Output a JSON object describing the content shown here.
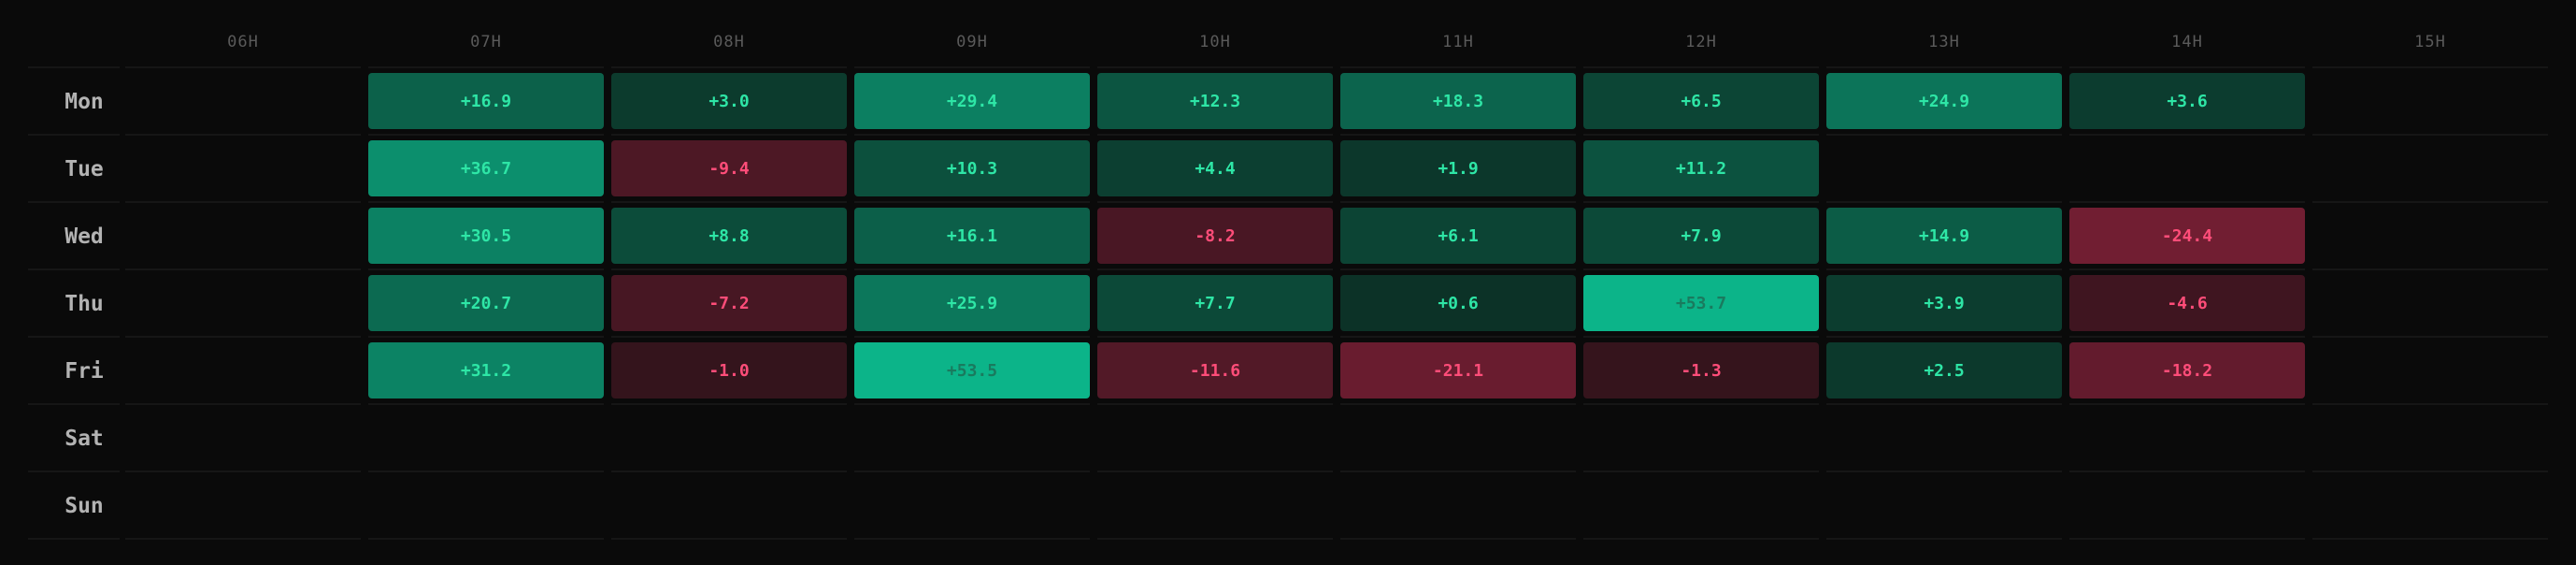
{
  "chart_data": {
    "type": "heatmap",
    "x_categories": [
      "06H",
      "07H",
      "08H",
      "09H",
      "10H",
      "11H",
      "12H",
      "13H",
      "14H",
      "15H"
    ],
    "y_categories": [
      "Mon",
      "Tue",
      "Wed",
      "Thu",
      "Fri",
      "Sat",
      "Sun"
    ],
    "cells": [
      {
        "day": "Mon",
        "hour": "07H",
        "value": 16.9,
        "label": "+16.9"
      },
      {
        "day": "Mon",
        "hour": "08H",
        "value": 3.0,
        "label": "+3.0"
      },
      {
        "day": "Mon",
        "hour": "09H",
        "value": 29.4,
        "label": "+29.4"
      },
      {
        "day": "Mon",
        "hour": "10H",
        "value": 12.3,
        "label": "+12.3"
      },
      {
        "day": "Mon",
        "hour": "11H",
        "value": 18.3,
        "label": "+18.3"
      },
      {
        "day": "Mon",
        "hour": "12H",
        "value": 6.5,
        "label": "+6.5"
      },
      {
        "day": "Mon",
        "hour": "13H",
        "value": 24.9,
        "label": "+24.9"
      },
      {
        "day": "Mon",
        "hour": "14H",
        "value": 3.6,
        "label": "+3.6"
      },
      {
        "day": "Tue",
        "hour": "07H",
        "value": 36.7,
        "label": "+36.7"
      },
      {
        "day": "Tue",
        "hour": "08H",
        "value": -9.4,
        "label": "-9.4"
      },
      {
        "day": "Tue",
        "hour": "09H",
        "value": 10.3,
        "label": "+10.3"
      },
      {
        "day": "Tue",
        "hour": "10H",
        "value": 4.4,
        "label": "+4.4"
      },
      {
        "day": "Tue",
        "hour": "11H",
        "value": 1.9,
        "label": "+1.9"
      },
      {
        "day": "Tue",
        "hour": "12H",
        "value": 11.2,
        "label": "+11.2"
      },
      {
        "day": "Wed",
        "hour": "07H",
        "value": 30.5,
        "label": "+30.5"
      },
      {
        "day": "Wed",
        "hour": "08H",
        "value": 8.8,
        "label": "+8.8"
      },
      {
        "day": "Wed",
        "hour": "09H",
        "value": 16.1,
        "label": "+16.1"
      },
      {
        "day": "Wed",
        "hour": "10H",
        "value": -8.2,
        "label": "-8.2"
      },
      {
        "day": "Wed",
        "hour": "11H",
        "value": 6.1,
        "label": "+6.1"
      },
      {
        "day": "Wed",
        "hour": "12H",
        "value": 7.9,
        "label": "+7.9"
      },
      {
        "day": "Wed",
        "hour": "13H",
        "value": 14.9,
        "label": "+14.9"
      },
      {
        "day": "Wed",
        "hour": "14H",
        "value": -24.4,
        "label": "-24.4"
      },
      {
        "day": "Thu",
        "hour": "07H",
        "value": 20.7,
        "label": "+20.7"
      },
      {
        "day": "Thu",
        "hour": "08H",
        "value": -7.2,
        "label": "-7.2"
      },
      {
        "day": "Thu",
        "hour": "09H",
        "value": 25.9,
        "label": "+25.9"
      },
      {
        "day": "Thu",
        "hour": "10H",
        "value": 7.7,
        "label": "+7.7"
      },
      {
        "day": "Thu",
        "hour": "11H",
        "value": 0.6,
        "label": "+0.6"
      },
      {
        "day": "Thu",
        "hour": "12H",
        "value": 53.7,
        "label": "+53.7"
      },
      {
        "day": "Thu",
        "hour": "13H",
        "value": 3.9,
        "label": "+3.9"
      },
      {
        "day": "Thu",
        "hour": "14H",
        "value": -4.6,
        "label": "-4.6"
      },
      {
        "day": "Fri",
        "hour": "07H",
        "value": 31.2,
        "label": "+31.2"
      },
      {
        "day": "Fri",
        "hour": "08H",
        "value": -1.0,
        "label": "-1.0"
      },
      {
        "day": "Fri",
        "hour": "09H",
        "value": 53.5,
        "label": "+53.5"
      },
      {
        "day": "Fri",
        "hour": "10H",
        "value": -11.6,
        "label": "-11.6"
      },
      {
        "day": "Fri",
        "hour": "11H",
        "value": -21.1,
        "label": "-21.1"
      },
      {
        "day": "Fri",
        "hour": "12H",
        "value": -1.3,
        "label": "-1.3"
      },
      {
        "day": "Fri",
        "hour": "13H",
        "value": 2.5,
        "label": "+2.5"
      },
      {
        "day": "Fri",
        "hour": "14H",
        "value": -18.2,
        "label": "-18.2"
      }
    ],
    "colors": {
      "background": "#0a0a0a",
      "positive": "#0cb489",
      "negative": "#e0305a",
      "positive_text": "#2ee6a6",
      "negative_text": "#ff4d79",
      "strong_positive_text": "#0b3d2c",
      "grid": "#1b1b1b",
      "axis_text": "#5a5a5a",
      "day_text": "#b3b3b3"
    }
  }
}
